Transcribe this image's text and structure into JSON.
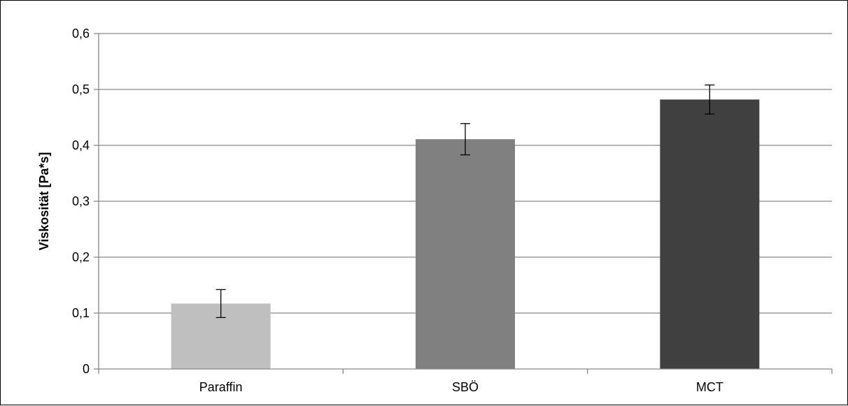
{
  "chart_data": {
    "type": "bar",
    "title": "",
    "xlabel": "",
    "ylabel": "Viskosität [Pa*s]",
    "categories": [
      "Paraffin",
      "SBÖ",
      "MCT"
    ],
    "values": [
      0.117,
      0.411,
      0.482
    ],
    "errors": [
      0.025,
      0.028,
      0.026
    ],
    "bar_colors": [
      "#bfbfbf",
      "#808080",
      "#404040"
    ],
    "ylim": [
      0,
      0.6
    ],
    "yticks": [
      0,
      0.1,
      0.2,
      0.3,
      0.4,
      0.5,
      0.6
    ],
    "ytick_labels": [
      "0",
      "0,1",
      "0,2",
      "0,3",
      "0,4",
      "0,5",
      "0,6"
    ],
    "grid": "horizontal",
    "legend": "none"
  }
}
